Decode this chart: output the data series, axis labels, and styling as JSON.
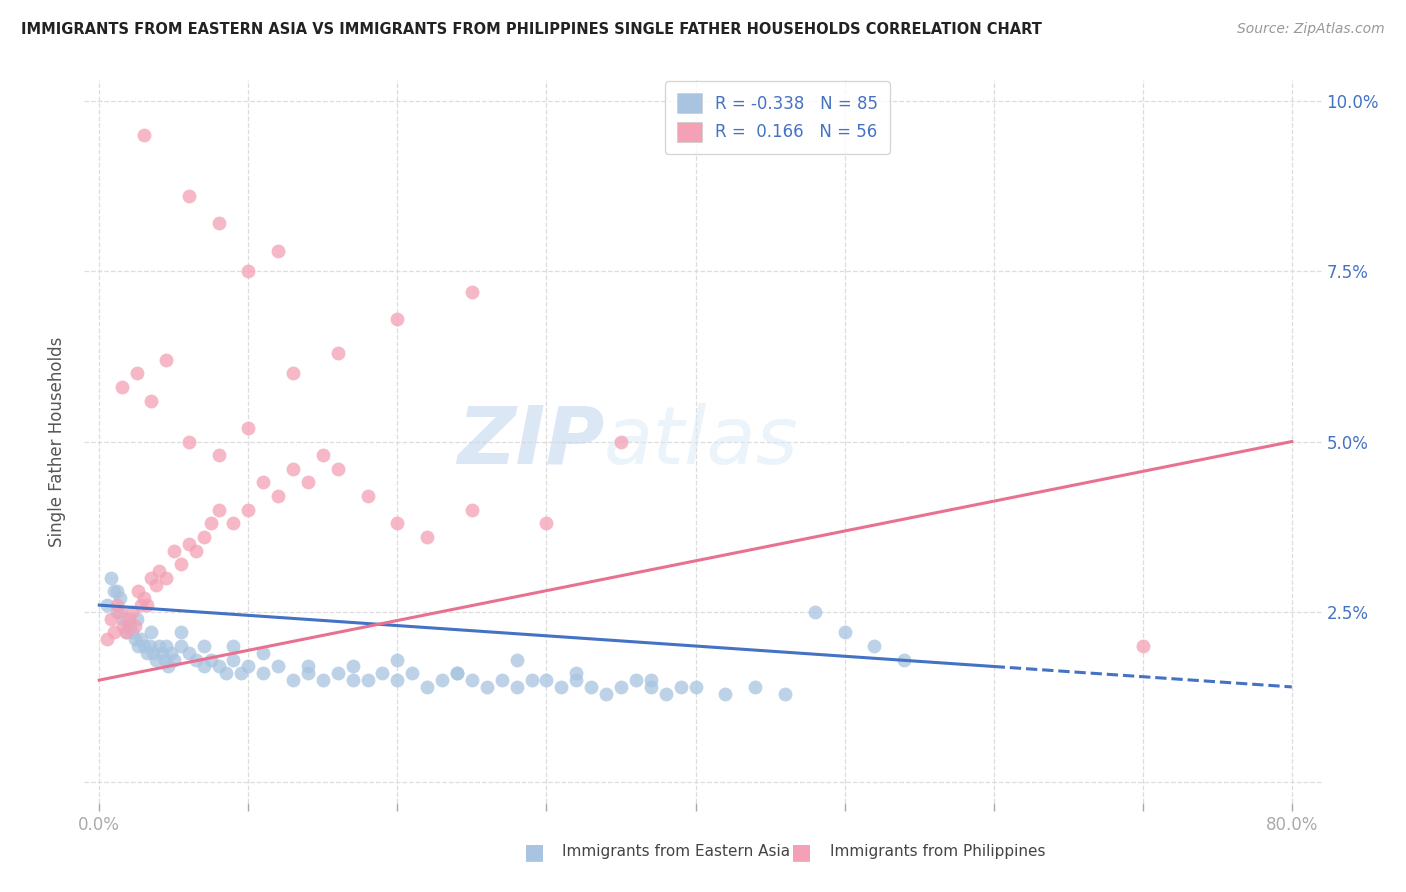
{
  "title": "IMMIGRANTS FROM EASTERN ASIA VS IMMIGRANTS FROM PHILIPPINES SINGLE FATHER HOUSEHOLDS CORRELATION CHART",
  "source": "Source: ZipAtlas.com",
  "ylabel": "Single Father Households",
  "legend_label1": "Immigrants from Eastern Asia",
  "legend_label2": "Immigrants from Philippines",
  "r1": "-0.338",
  "n1": "85",
  "r2": "0.166",
  "n2": "56",
  "color1": "#a8c4e0",
  "color2": "#f4a0b5",
  "line1_color": "#4472c4",
  "line2_color": "#e87090",
  "watermark_zip": "ZIP",
  "watermark_atlas": "atlas",
  "xmin": 0.0,
  "xmax": 0.8,
  "ymin": 0.0,
  "ymax": 0.1,
  "line1_start_y": 0.026,
  "line1_end_y": 0.014,
  "line1_solid_end_x": 0.6,
  "line2_start_y": 0.015,
  "line2_end_y": 0.05,
  "eastern_asia_x": [
    0.005,
    0.008,
    0.01,
    0.012,
    0.014,
    0.016,
    0.018,
    0.02,
    0.022,
    0.024,
    0.026,
    0.028,
    0.03,
    0.032,
    0.034,
    0.036,
    0.038,
    0.04,
    0.042,
    0.044,
    0.046,
    0.048,
    0.05,
    0.055,
    0.06,
    0.065,
    0.07,
    0.075,
    0.08,
    0.085,
    0.09,
    0.095,
    0.1,
    0.11,
    0.12,
    0.13,
    0.14,
    0.15,
    0.16,
    0.17,
    0.18,
    0.19,
    0.2,
    0.21,
    0.22,
    0.23,
    0.24,
    0.25,
    0.26,
    0.27,
    0.28,
    0.29,
    0.3,
    0.31,
    0.32,
    0.33,
    0.34,
    0.35,
    0.36,
    0.37,
    0.38,
    0.39,
    0.4,
    0.42,
    0.44,
    0.46,
    0.48,
    0.5,
    0.52,
    0.54,
    0.012,
    0.025,
    0.035,
    0.045,
    0.055,
    0.07,
    0.09,
    0.11,
    0.14,
    0.17,
    0.2,
    0.24,
    0.28,
    0.32,
    0.37
  ],
  "eastern_asia_y": [
    0.026,
    0.03,
    0.028,
    0.025,
    0.027,
    0.024,
    0.022,
    0.023,
    0.022,
    0.021,
    0.02,
    0.021,
    0.02,
    0.019,
    0.02,
    0.019,
    0.018,
    0.02,
    0.019,
    0.018,
    0.017,
    0.019,
    0.018,
    0.02,
    0.019,
    0.018,
    0.017,
    0.018,
    0.017,
    0.016,
    0.018,
    0.016,
    0.017,
    0.016,
    0.017,
    0.015,
    0.016,
    0.015,
    0.016,
    0.015,
    0.015,
    0.016,
    0.015,
    0.016,
    0.014,
    0.015,
    0.016,
    0.015,
    0.014,
    0.015,
    0.014,
    0.015,
    0.015,
    0.014,
    0.015,
    0.014,
    0.013,
    0.014,
    0.015,
    0.014,
    0.013,
    0.014,
    0.014,
    0.013,
    0.014,
    0.013,
    0.025,
    0.022,
    0.02,
    0.018,
    0.028,
    0.024,
    0.022,
    0.02,
    0.022,
    0.02,
    0.02,
    0.019,
    0.017,
    0.017,
    0.018,
    0.016,
    0.018,
    0.016,
    0.015
  ],
  "philippines_x": [
    0.005,
    0.008,
    0.01,
    0.012,
    0.014,
    0.016,
    0.018,
    0.02,
    0.022,
    0.024,
    0.026,
    0.028,
    0.03,
    0.032,
    0.035,
    0.038,
    0.04,
    0.045,
    0.05,
    0.055,
    0.06,
    0.065,
    0.07,
    0.075,
    0.08,
    0.09,
    0.1,
    0.11,
    0.12,
    0.13,
    0.14,
    0.15,
    0.16,
    0.18,
    0.2,
    0.22,
    0.25,
    0.3,
    0.35,
    0.7,
    0.015,
    0.025,
    0.035,
    0.045,
    0.06,
    0.08,
    0.1,
    0.13,
    0.16,
    0.2,
    0.25,
    0.1,
    0.06,
    0.08,
    0.12,
    0.03
  ],
  "philippines_y": [
    0.021,
    0.024,
    0.022,
    0.026,
    0.025,
    0.023,
    0.022,
    0.024,
    0.025,
    0.023,
    0.028,
    0.026,
    0.027,
    0.026,
    0.03,
    0.029,
    0.031,
    0.03,
    0.034,
    0.032,
    0.035,
    0.034,
    0.036,
    0.038,
    0.04,
    0.038,
    0.04,
    0.044,
    0.042,
    0.046,
    0.044,
    0.048,
    0.046,
    0.042,
    0.038,
    0.036,
    0.04,
    0.038,
    0.05,
    0.02,
    0.058,
    0.06,
    0.056,
    0.062,
    0.05,
    0.048,
    0.052,
    0.06,
    0.063,
    0.068,
    0.072,
    0.075,
    0.086,
    0.082,
    0.078,
    0.095
  ]
}
